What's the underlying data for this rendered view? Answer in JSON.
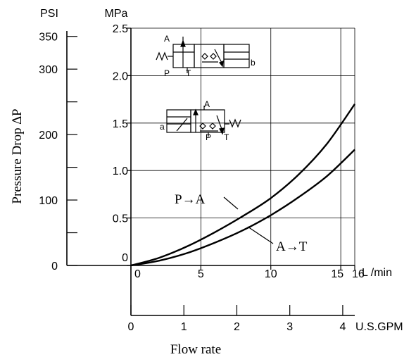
{
  "chart_data": {
    "type": "line",
    "title": "",
    "ylabel": "Pressure Drop ∆P",
    "xlabel": "Flow rate",
    "x_primary": {
      "unit": "L /min",
      "range": [
        0,
        16
      ],
      "ticks": [
        0,
        5,
        10,
        15,
        16
      ],
      "tick_labels": [
        "0",
        "5",
        "10",
        "15",
        "16"
      ]
    },
    "x_secondary": {
      "unit": "U.S.GPM",
      "range": [
        0,
        4.227
      ],
      "ticks": [
        0,
        1,
        2,
        3,
        4
      ],
      "tick_labels": [
        "0",
        "1",
        "2",
        "3",
        "4"
      ]
    },
    "y_primary": {
      "unit": "MPa",
      "range": [
        0,
        2.5
      ],
      "ticks": [
        0,
        0.5,
        1.0,
        1.5,
        2.0,
        2.5
      ],
      "tick_labels": [
        "0",
        "0.5",
        "1.0",
        "1.5",
        "2.0",
        "2.5"
      ]
    },
    "y_secondary": {
      "unit": "PSI",
      "range": [
        0,
        362.6
      ],
      "ticks": [
        0,
        50,
        100,
        150,
        200,
        250,
        300,
        350
      ],
      "tick_labels": [
        "0",
        "",
        "100",
        "",
        "200",
        "",
        "300",
        "350"
      ]
    },
    "grid": true,
    "series": [
      {
        "name": "P→A",
        "x": [
          0,
          2,
          4,
          6,
          8,
          10,
          12,
          14,
          16
        ],
        "y": [
          0,
          0.08,
          0.2,
          0.35,
          0.52,
          0.71,
          0.96,
          1.28,
          1.7
        ]
      },
      {
        "name": "A→T",
        "x": [
          0,
          2,
          4,
          6,
          8,
          10,
          12,
          14,
          16
        ],
        "y": [
          0,
          0.05,
          0.13,
          0.24,
          0.37,
          0.53,
          0.72,
          0.94,
          1.22
        ]
      }
    ],
    "annotations": {
      "symbol1_ports": [
        "A",
        "P",
        "T",
        "b"
      ],
      "symbol2_ports": [
        "A",
        "a",
        "P",
        "T"
      ]
    }
  }
}
